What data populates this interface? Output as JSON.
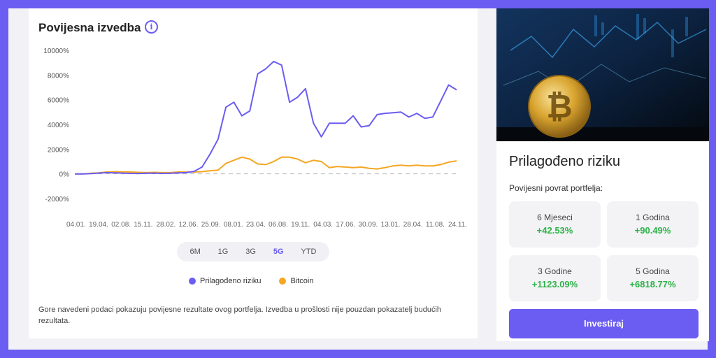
{
  "chart_panel": {
    "title": "Povijesna izvedba",
    "info_icon": "info-icon",
    "range_options": [
      "6M",
      "1G",
      "3G",
      "5G",
      "YTD"
    ],
    "active_range": "5G",
    "disclaimer": "Gore navedeni podaci pokazuju povijesne rezultate ovog portfelja. Izvedba u prošlosti nije pouzdan pokazatelj budućih rezultata."
  },
  "chart_data": {
    "type": "line",
    "title": "",
    "xlabel": "",
    "ylabel": "",
    "ylim": [
      -2000,
      10000
    ],
    "yticks": [
      "10000%",
      "8000%",
      "6000%",
      "4000%",
      "2000%",
      "0%",
      "-2000%"
    ],
    "ytick_values": [
      10000,
      8000,
      6000,
      4000,
      2000,
      0,
      -2000
    ],
    "x_tick_labels": [
      "04.01.",
      "19.04.",
      "02.08.",
      "15.11.",
      "28.02.",
      "12.06.",
      "25.09.",
      "08.01.",
      "23.04.",
      "06.08.",
      "19.11.",
      "04.03.",
      "17.06.",
      "30.09.",
      "13.01.",
      "28.04.",
      "11.08.",
      "24.11."
    ],
    "zero_line": "dashed",
    "series": [
      {
        "name": "Prilagođeno riziku",
        "color": "#6b5cf2",
        "values": [
          0,
          0,
          20,
          60,
          100,
          80,
          60,
          40,
          30,
          50,
          60,
          40,
          50,
          80,
          100,
          200,
          550,
          1600,
          2800,
          5400,
          5800,
          4700,
          5100,
          8100,
          8500,
          9100,
          8800,
          5800,
          6200,
          6900,
          4100,
          3000,
          4100,
          4100,
          4100,
          4700,
          3800,
          3900,
          4800,
          4900,
          4950,
          5000,
          4600,
          4900,
          4500,
          4600,
          5900,
          7200,
          6800
        ]
      },
      {
        "name": "Bitcoin",
        "color": "#f5a623",
        "values": [
          0,
          0,
          50,
          80,
          150,
          180,
          170,
          150,
          120,
          100,
          120,
          100,
          100,
          150,
          150,
          150,
          180,
          250,
          300,
          850,
          1100,
          1350,
          1200,
          800,
          750,
          1000,
          1350,
          1350,
          1200,
          900,
          1100,
          1000,
          500,
          600,
          550,
          500,
          550,
          450,
          400,
          500,
          650,
          700,
          650,
          700,
          650,
          650,
          750,
          950,
          1050
        ]
      }
    ]
  },
  "product": {
    "name": "Prilagođeno riziku",
    "returns_heading": "Povijesni povrat portfelja:",
    "stats": [
      {
        "label": "6 Mjeseci",
        "value": "+42.53%"
      },
      {
        "label": "1 Godina",
        "value": "+90.49%"
      },
      {
        "label": "3 Godine",
        "value": "+1123.09%"
      },
      {
        "label": "5 Godina",
        "value": "+6818.77%"
      }
    ],
    "cta": "Investiraj"
  },
  "colors": {
    "accent": "#6b5cf2",
    "positive": "#2db34a",
    "bitcoin": "#f5a623"
  }
}
